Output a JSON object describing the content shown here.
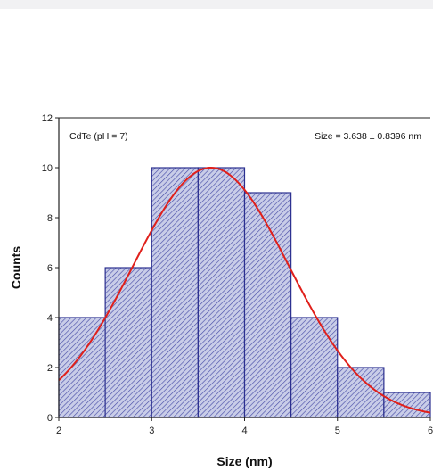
{
  "chart_data": {
    "type": "bar",
    "subtype": "histogram-with-gaussian-fit",
    "bin_edges": [
      2,
      2.5,
      3,
      3.5,
      4,
      4.5,
      5,
      5.5,
      6
    ],
    "values": [
      4,
      6,
      10,
      10,
      9,
      4,
      2,
      1
    ],
    "xlabel": "Size (nm)",
    "ylabel": "Counts",
    "xlim": [
      2,
      6
    ],
    "ylim": [
      0,
      12
    ],
    "xticks": [
      2,
      3,
      4,
      5,
      6
    ],
    "yticks": [
      0,
      2,
      4,
      6,
      8,
      10,
      12
    ],
    "grid": false,
    "annotations": {
      "sample": "CdTe (pH = 7)",
      "size": "Size = 3.638 ± 0.8396 nm"
    },
    "fit": {
      "type": "gaussian",
      "mean": 3.638,
      "sigma": 0.8396,
      "amplitude": 10
    },
    "colors": {
      "bar_fill": "#c9cde8",
      "bar_edge": "#2b2f8f",
      "hatch": "#4a4fa8",
      "fit_line": "#e0201b"
    }
  }
}
